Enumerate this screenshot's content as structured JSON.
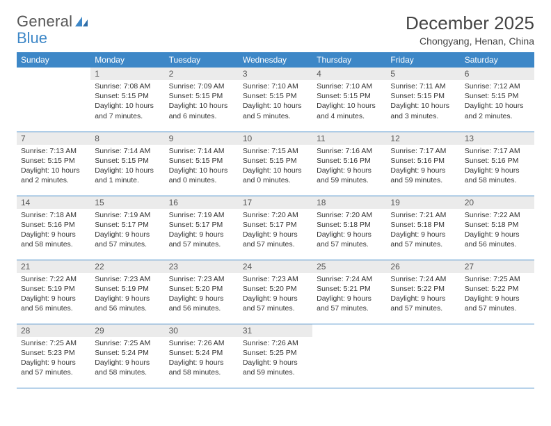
{
  "logo": {
    "text1": "General",
    "text2": "Blue"
  },
  "title": "December 2025",
  "subtitle": "Chongyang, Henan, China",
  "colors": {
    "accent": "#3d87c7",
    "header_bg": "#3d87c7",
    "header_text": "#ffffff",
    "daynum_bg": "#ebebeb",
    "text": "#333333",
    "rule": "#3d87c7"
  },
  "weekdays": [
    "Sunday",
    "Monday",
    "Tuesday",
    "Wednesday",
    "Thursday",
    "Friday",
    "Saturday"
  ],
  "layout": {
    "weeks": 5,
    "first_day_col": 1
  },
  "days": [
    {
      "n": "1",
      "sr": "7:08 AM",
      "ss": "5:15 PM",
      "dl": "10 hours and 7 minutes."
    },
    {
      "n": "2",
      "sr": "7:09 AM",
      "ss": "5:15 PM",
      "dl": "10 hours and 6 minutes."
    },
    {
      "n": "3",
      "sr": "7:10 AM",
      "ss": "5:15 PM",
      "dl": "10 hours and 5 minutes."
    },
    {
      "n": "4",
      "sr": "7:10 AM",
      "ss": "5:15 PM",
      "dl": "10 hours and 4 minutes."
    },
    {
      "n": "5",
      "sr": "7:11 AM",
      "ss": "5:15 PM",
      "dl": "10 hours and 3 minutes."
    },
    {
      "n": "6",
      "sr": "7:12 AM",
      "ss": "5:15 PM",
      "dl": "10 hours and 2 minutes."
    },
    {
      "n": "7",
      "sr": "7:13 AM",
      "ss": "5:15 PM",
      "dl": "10 hours and 2 minutes."
    },
    {
      "n": "8",
      "sr": "7:14 AM",
      "ss": "5:15 PM",
      "dl": "10 hours and 1 minute."
    },
    {
      "n": "9",
      "sr": "7:14 AM",
      "ss": "5:15 PM",
      "dl": "10 hours and 0 minutes."
    },
    {
      "n": "10",
      "sr": "7:15 AM",
      "ss": "5:15 PM",
      "dl": "10 hours and 0 minutes."
    },
    {
      "n": "11",
      "sr": "7:16 AM",
      "ss": "5:16 PM",
      "dl": "9 hours and 59 minutes."
    },
    {
      "n": "12",
      "sr": "7:17 AM",
      "ss": "5:16 PM",
      "dl": "9 hours and 59 minutes."
    },
    {
      "n": "13",
      "sr": "7:17 AM",
      "ss": "5:16 PM",
      "dl": "9 hours and 58 minutes."
    },
    {
      "n": "14",
      "sr": "7:18 AM",
      "ss": "5:16 PM",
      "dl": "9 hours and 58 minutes."
    },
    {
      "n": "15",
      "sr": "7:19 AM",
      "ss": "5:17 PM",
      "dl": "9 hours and 57 minutes."
    },
    {
      "n": "16",
      "sr": "7:19 AM",
      "ss": "5:17 PM",
      "dl": "9 hours and 57 minutes."
    },
    {
      "n": "17",
      "sr": "7:20 AM",
      "ss": "5:17 PM",
      "dl": "9 hours and 57 minutes."
    },
    {
      "n": "18",
      "sr": "7:20 AM",
      "ss": "5:18 PM",
      "dl": "9 hours and 57 minutes."
    },
    {
      "n": "19",
      "sr": "7:21 AM",
      "ss": "5:18 PM",
      "dl": "9 hours and 57 minutes."
    },
    {
      "n": "20",
      "sr": "7:22 AM",
      "ss": "5:18 PM",
      "dl": "9 hours and 56 minutes."
    },
    {
      "n": "21",
      "sr": "7:22 AM",
      "ss": "5:19 PM",
      "dl": "9 hours and 56 minutes."
    },
    {
      "n": "22",
      "sr": "7:23 AM",
      "ss": "5:19 PM",
      "dl": "9 hours and 56 minutes."
    },
    {
      "n": "23",
      "sr": "7:23 AM",
      "ss": "5:20 PM",
      "dl": "9 hours and 56 minutes."
    },
    {
      "n": "24",
      "sr": "7:23 AM",
      "ss": "5:20 PM",
      "dl": "9 hours and 57 minutes."
    },
    {
      "n": "25",
      "sr": "7:24 AM",
      "ss": "5:21 PM",
      "dl": "9 hours and 57 minutes."
    },
    {
      "n": "26",
      "sr": "7:24 AM",
      "ss": "5:22 PM",
      "dl": "9 hours and 57 minutes."
    },
    {
      "n": "27",
      "sr": "7:25 AM",
      "ss": "5:22 PM",
      "dl": "9 hours and 57 minutes."
    },
    {
      "n": "28",
      "sr": "7:25 AM",
      "ss": "5:23 PM",
      "dl": "9 hours and 57 minutes."
    },
    {
      "n": "29",
      "sr": "7:25 AM",
      "ss": "5:24 PM",
      "dl": "9 hours and 58 minutes."
    },
    {
      "n": "30",
      "sr": "7:26 AM",
      "ss": "5:24 PM",
      "dl": "9 hours and 58 minutes."
    },
    {
      "n": "31",
      "sr": "7:26 AM",
      "ss": "5:25 PM",
      "dl": "9 hours and 59 minutes."
    }
  ],
  "labels": {
    "sunrise": "Sunrise:",
    "sunset": "Sunset:",
    "daylight": "Daylight:"
  }
}
